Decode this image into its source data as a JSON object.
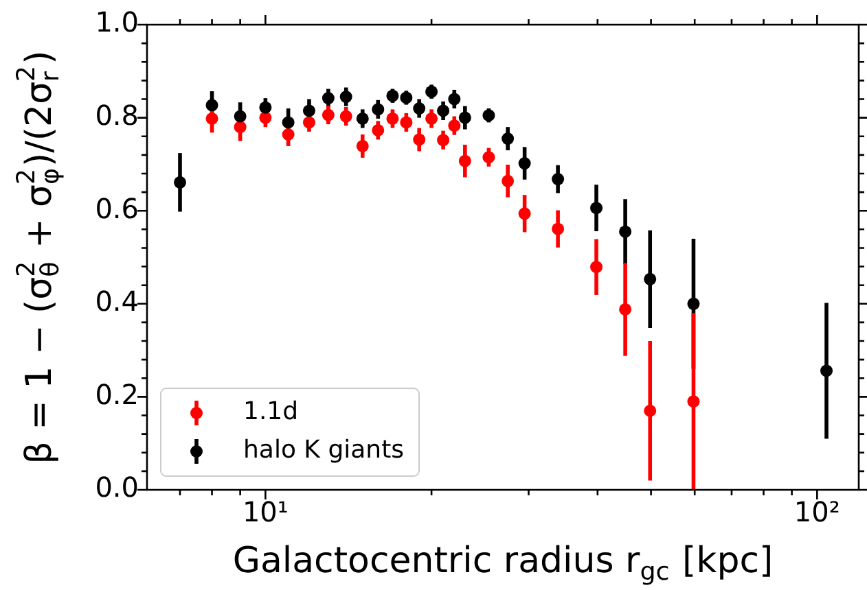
{
  "chart_data": {
    "type": "scatter",
    "xlabel": "Galactocentric radius r$_{gc}$ [kpc]",
    "ylabel": "β = 1 − (σ$_{θ}$$^{2}$ + σ$_{φ}$$^{2}$)/(2σ$_{r}$$^{2}$)",
    "log": "x",
    "grid": false,
    "legend": "bottom left",
    "marker": "circle",
    "xlim": [
      6.1,
      119
    ],
    "xticks": [
      {
        "value": 7,
        "label": null
      },
      {
        "value": 8,
        "label": null
      },
      {
        "value": 9,
        "label": null
      },
      {
        "value": 10,
        "label": "10¹"
      },
      {
        "value": 20,
        "label": null
      },
      {
        "value": 30,
        "label": null
      },
      {
        "value": 40,
        "label": null
      },
      {
        "value": 50,
        "label": null
      },
      {
        "value": 60,
        "label": null
      },
      {
        "value": 70,
        "label": null
      },
      {
        "value": 80,
        "label": null
      },
      {
        "value": 90,
        "label": null
      },
      {
        "value": 100,
        "label": "10²"
      }
    ],
    "ylim": [
      0,
      1
    ],
    "yticks": [
      {
        "value": 0,
        "label": "0.0"
      },
      {
        "value": 0.2,
        "label": "0.2"
      },
      {
        "value": 0.4,
        "label": "0.4"
      },
      {
        "value": 0.6,
        "label": "0.6"
      },
      {
        "value": 0.8,
        "label": "0.8"
      },
      {
        "value": 1,
        "label": "1.0"
      }
    ],
    "series": [
      {
        "name": "1.1d",
        "color": "#ff0000",
        "x": [
          8,
          9,
          10,
          11,
          12,
          13,
          14,
          15,
          16,
          17,
          18,
          19,
          20,
          21,
          22,
          23,
          25.4,
          27.5,
          29.5,
          33.9,
          39.8,
          44.9,
          49.8,
          59.7
        ],
        "values": [
          0.798,
          0.78,
          0.8,
          0.764,
          0.79,
          0.806,
          0.803,
          0.739,
          0.773,
          0.798,
          0.79,
          0.753,
          0.798,
          0.752,
          0.783,
          0.707,
          0.715,
          0.664,
          0.594,
          0.561,
          0.479,
          0.388,
          0.17,
          0.19
        ],
        "errors": [
          0.03,
          0.03,
          0.02,
          0.025,
          0.02,
          0.02,
          0.02,
          0.025,
          0.02,
          0.02,
          0.02,
          0.025,
          0.02,
          0.02,
          0.02,
          0.035,
          0.02,
          0.035,
          0.04,
          0.04,
          0.06,
          0.1,
          0.15,
          0.19
        ]
      },
      {
        "name": "halo K giants",
        "color": "#000000",
        "x": [
          7,
          8,
          9,
          10,
          11,
          12,
          13,
          14,
          15,
          16,
          17,
          18,
          19,
          20,
          21,
          22,
          23,
          25.4,
          27.5,
          29.5,
          33.9,
          39.8,
          44.9,
          49.8,
          59.7,
          104
        ],
        "values": [
          0.661,
          0.827,
          0.803,
          0.822,
          0.79,
          0.815,
          0.842,
          0.845,
          0.798,
          0.818,
          0.847,
          0.843,
          0.82,
          0.856,
          0.815,
          0.84,
          0.8,
          0.805,
          0.755,
          0.702,
          0.668,
          0.606,
          0.555,
          0.453,
          0.4,
          0.256
        ],
        "errors": [
          0.063,
          0.03,
          0.03,
          0.02,
          0.03,
          0.025,
          0.02,
          0.02,
          0.02,
          0.02,
          0.015,
          0.015,
          0.02,
          0.015,
          0.02,
          0.02,
          0.025,
          0.015,
          0.025,
          0.035,
          0.03,
          0.05,
          0.07,
          0.105,
          0.14,
          0.146
        ]
      }
    ]
  }
}
